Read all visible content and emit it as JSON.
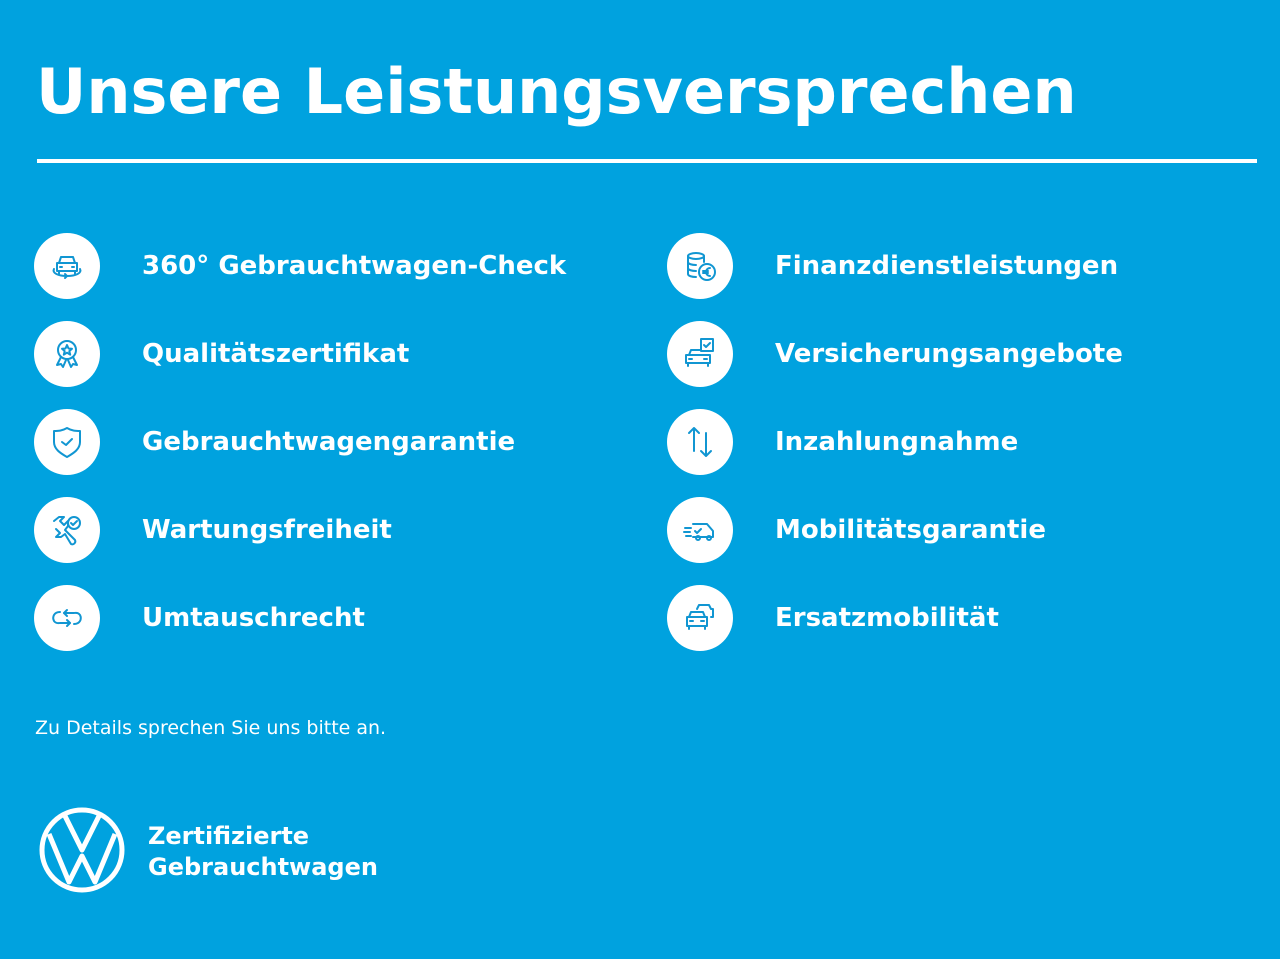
{
  "title": "Unsere Leistungsversprechen",
  "left_items": [
    {
      "label": "360° Gebrauchtwagen-Check",
      "icon": "car-360-icon"
    },
    {
      "label": "Qualitätszertifikat",
      "icon": "award-badge-icon"
    },
    {
      "label": "Gebrauchtwagengarantie",
      "icon": "shield-check-icon"
    },
    {
      "label": "Wartungsfreiheit",
      "icon": "wrench-check-icon"
    },
    {
      "label": "Umtauschrecht",
      "icon": "exchange-arrows-icon"
    }
  ],
  "right_items": [
    {
      "label": "Finanzdienstleistungen",
      "icon": "coins-euro-icon"
    },
    {
      "label": "Versicherungsangebote",
      "icon": "car-insurance-icon"
    },
    {
      "label": "Inzahlungnahme",
      "icon": "up-down-arrows-icon"
    },
    {
      "label": "Mobilitätsgarantie",
      "icon": "van-fast-icon"
    },
    {
      "label": "Ersatzmobilität",
      "icon": "two-cars-icon"
    }
  ],
  "note": "Zu Details sprechen Sie uns bitte an.",
  "brand": {
    "line1": "Zertifizierte",
    "line2": "Gebrauchtwagen",
    "logo": "VW"
  },
  "colors": {
    "background": "#00a2df",
    "icon": "#1196d2",
    "text": "#ffffff"
  }
}
